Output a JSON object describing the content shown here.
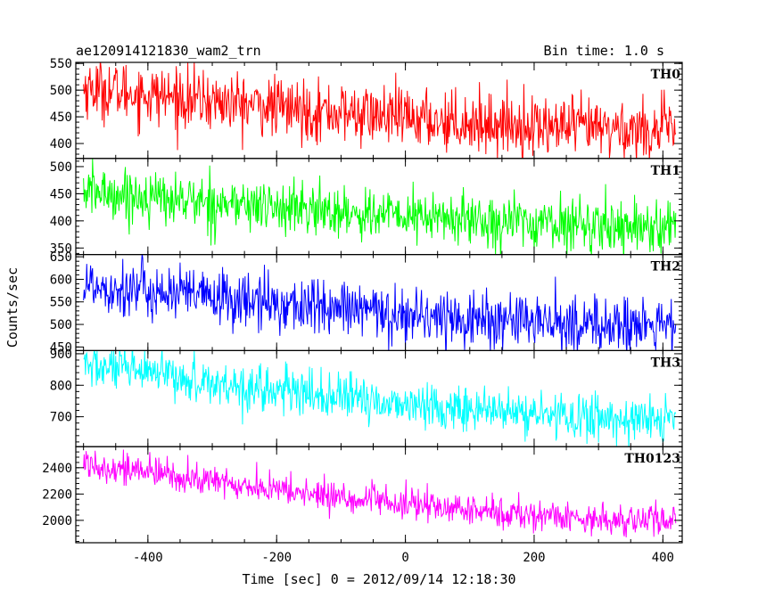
{
  "chart_data": {
    "type": "line",
    "title": "ae120914121830_wam2_trn",
    "subtitle": "Bin time: 1.0 s",
    "xlabel": "Time [sec] 0 = 2012/09/14 12:18:30",
    "ylabel": "Counts/sec",
    "xlim": [
      -512,
      430
    ],
    "x_ticks": [
      -400,
      -200,
      0,
      200,
      400
    ],
    "x_range": [
      -500,
      420
    ],
    "panels": [
      {
        "name": "TH0",
        "color": "#ff0000",
        "ylim": [
          372,
          552
        ],
        "y_ticks": [
          400,
          450,
          500,
          550
        ],
        "trend_start": 505,
        "trend_end": 425,
        "noise": 28
      },
      {
        "name": "TH1",
        "color": "#00ff00",
        "ylim": [
          338,
          515
        ],
        "y_ticks": [
          350,
          400,
          450,
          500
        ],
        "trend_start": 455,
        "trend_end": 390,
        "noise": 24
      },
      {
        "name": "TH2",
        "color": "#0000ff",
        "ylim": [
          442,
          655
        ],
        "y_ticks": [
          450,
          500,
          550,
          600,
          650
        ],
        "trend_start": 590,
        "trend_end": 495,
        "noise": 32
      },
      {
        "name": "TH3",
        "color": "#00ffff",
        "ylim": [
          605,
          910
        ],
        "y_ticks": [
          700,
          800,
          900
        ],
        "trend_start": 865,
        "trend_end": 690,
        "noise": 36
      },
      {
        "name": "TH0123",
        "color": "#ff00ff",
        "ylim": [
          1830,
          2560
        ],
        "y_ticks": [
          2000,
          2200,
          2400
        ],
        "trend_start": 2440,
        "trend_end": 1995,
        "noise": 60
      }
    ]
  }
}
